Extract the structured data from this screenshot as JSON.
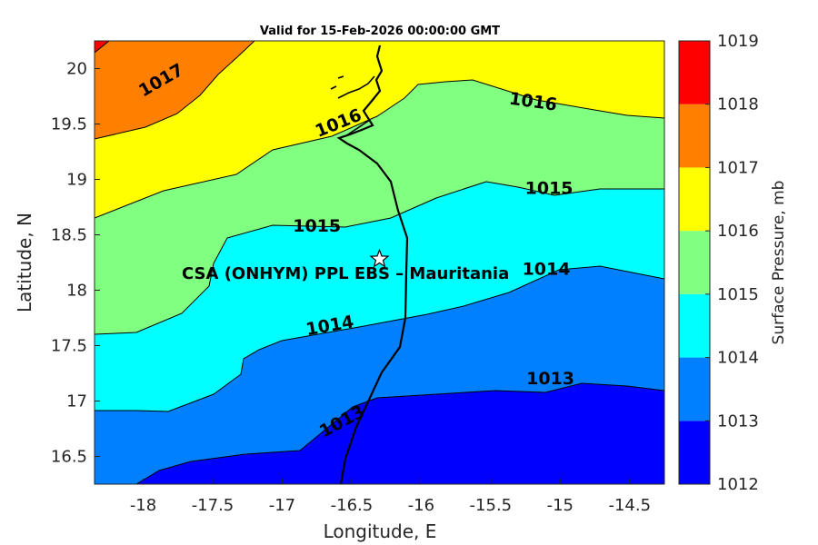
{
  "title": "Valid for 15-Feb-2026 00:00:00 GMT",
  "site_label": "CSA (ONHYM) PPL EBS  – Mauritania",
  "site_marker": "star-icon",
  "chart_data": {
    "type": "contour-map",
    "title": "Valid for 15-Feb-2026 00:00:00 GMT",
    "xlabel": "Longitude, E",
    "ylabel": "Latitude, N",
    "xlim": [
      -18.35,
      -14.25
    ],
    "ylim": [
      16.25,
      20.25
    ],
    "xticks": [
      "-18",
      "-17.5",
      "-17",
      "-16.5",
      "-16",
      "-15.5",
      "-15",
      "-14.5"
    ],
    "yticks": [
      "16.5",
      "17",
      "17.5",
      "18",
      "18.5",
      "19",
      "19.5",
      "20"
    ],
    "site": {
      "lon": -16.3,
      "lat": 18.28
    },
    "contour_labels": [
      {
        "text": "1013",
        "lon": -16.55,
        "lat": 16.77,
        "angle": -28
      },
      {
        "text": "1013",
        "lon": -15.07,
        "lat": 17.15,
        "angle": 0
      },
      {
        "text": "1014",
        "lon": -16.65,
        "lat": 17.63,
        "angle": -10
      },
      {
        "text": "1014",
        "lon": -15.1,
        "lat": 18.14,
        "angle": 0
      },
      {
        "text": "1015",
        "lon": -16.75,
        "lat": 18.53,
        "angle": 0
      },
      {
        "text": "1015",
        "lon": -15.08,
        "lat": 18.87,
        "angle": 0
      },
      {
        "text": "1016",
        "lon": -16.58,
        "lat": 19.46,
        "angle": -22
      },
      {
        "text": "1016",
        "lon": -15.2,
        "lat": 19.65,
        "angle": 8
      },
      {
        "text": "1017",
        "lon": -17.85,
        "lat": 19.85,
        "angle": -30
      }
    ],
    "colorbar": {
      "label": "Surface Pressure, mb",
      "ticks": [
        "1019",
        "1018",
        "1017",
        "1016",
        "1015",
        "1014",
        "1013",
        "1012"
      ],
      "levels": [
        1012,
        1013,
        1014,
        1015,
        1016,
        1017,
        1018,
        1019
      ],
      "colors": [
        "#0000ff",
        "#0080ff",
        "#00ffff",
        "#80ff80",
        "#ffff00",
        "#ff8000",
        "#ff0000",
        "#800000"
      ]
    }
  }
}
